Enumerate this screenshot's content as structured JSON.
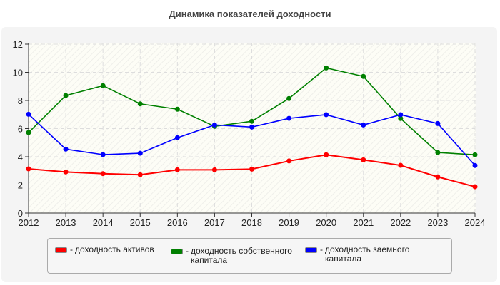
{
  "chart_data": {
    "type": "line",
    "title": "Динамика показателей доходности",
    "xlabel": "",
    "ylabel": "",
    "x": [
      2012,
      2013,
      2014,
      2015,
      2016,
      2017,
      2018,
      2019,
      2020,
      2021,
      2022,
      2023,
      2024
    ],
    "ylim": [
      0,
      12
    ],
    "yticks": [
      0,
      2,
      4,
      6,
      8,
      10,
      12
    ],
    "grid": true,
    "legend_position": "bottom",
    "series": [
      {
        "name": "доходность активов",
        "color": "#ff0000",
        "values": [
          3.14,
          2.92,
          2.8,
          2.72,
          3.07,
          3.07,
          3.12,
          3.7,
          4.14,
          3.78,
          3.39,
          2.57,
          1.87
        ]
      },
      {
        "name": "доходность собственного капитала",
        "color": "#008000",
        "values": [
          5.72,
          8.35,
          9.05,
          7.76,
          7.38,
          6.16,
          6.52,
          8.14,
          10.31,
          9.71,
          6.72,
          4.3,
          4.14
        ]
      },
      {
        "name": "доходность заемного капитала",
        "color": "#0000ff",
        "values": [
          7.02,
          4.54,
          4.15,
          4.25,
          5.35,
          6.26,
          6.11,
          6.73,
          6.99,
          6.26,
          6.99,
          6.36,
          3.38
        ]
      }
    ]
  }
}
